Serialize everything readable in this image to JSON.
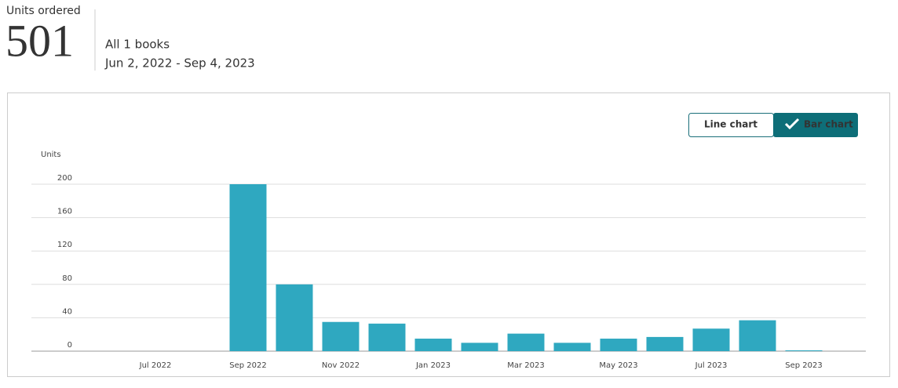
{
  "summary": {
    "label": "Units ordered",
    "total": 501,
    "scope": "All 1 books",
    "date_range": "Jun 2, 2022 - Sep 4, 2023"
  },
  "controls": {
    "line_chart": "Line chart",
    "bar_chart": "Bar chart"
  },
  "chart_data": {
    "type": "bar",
    "y_label": "Units",
    "categories": [
      null,
      "Jul 2022",
      null,
      "Sep 2022",
      null,
      "Nov 2022",
      null,
      "Jan 2023",
      null,
      "Mar 2023",
      null,
      "May 2023",
      null,
      "Jul 2023",
      null,
      "Sep 2023"
    ],
    "values": [
      0,
      0,
      0,
      200,
      80,
      35,
      33,
      15,
      10,
      21,
      10,
      15,
      17,
      27,
      37,
      1
    ],
    "color": "#2fa8c0",
    "ylim": [
      0,
      200
    ],
    "yticks": [
      0,
      40,
      80,
      120,
      160,
      200
    ],
    "grid": true
  }
}
